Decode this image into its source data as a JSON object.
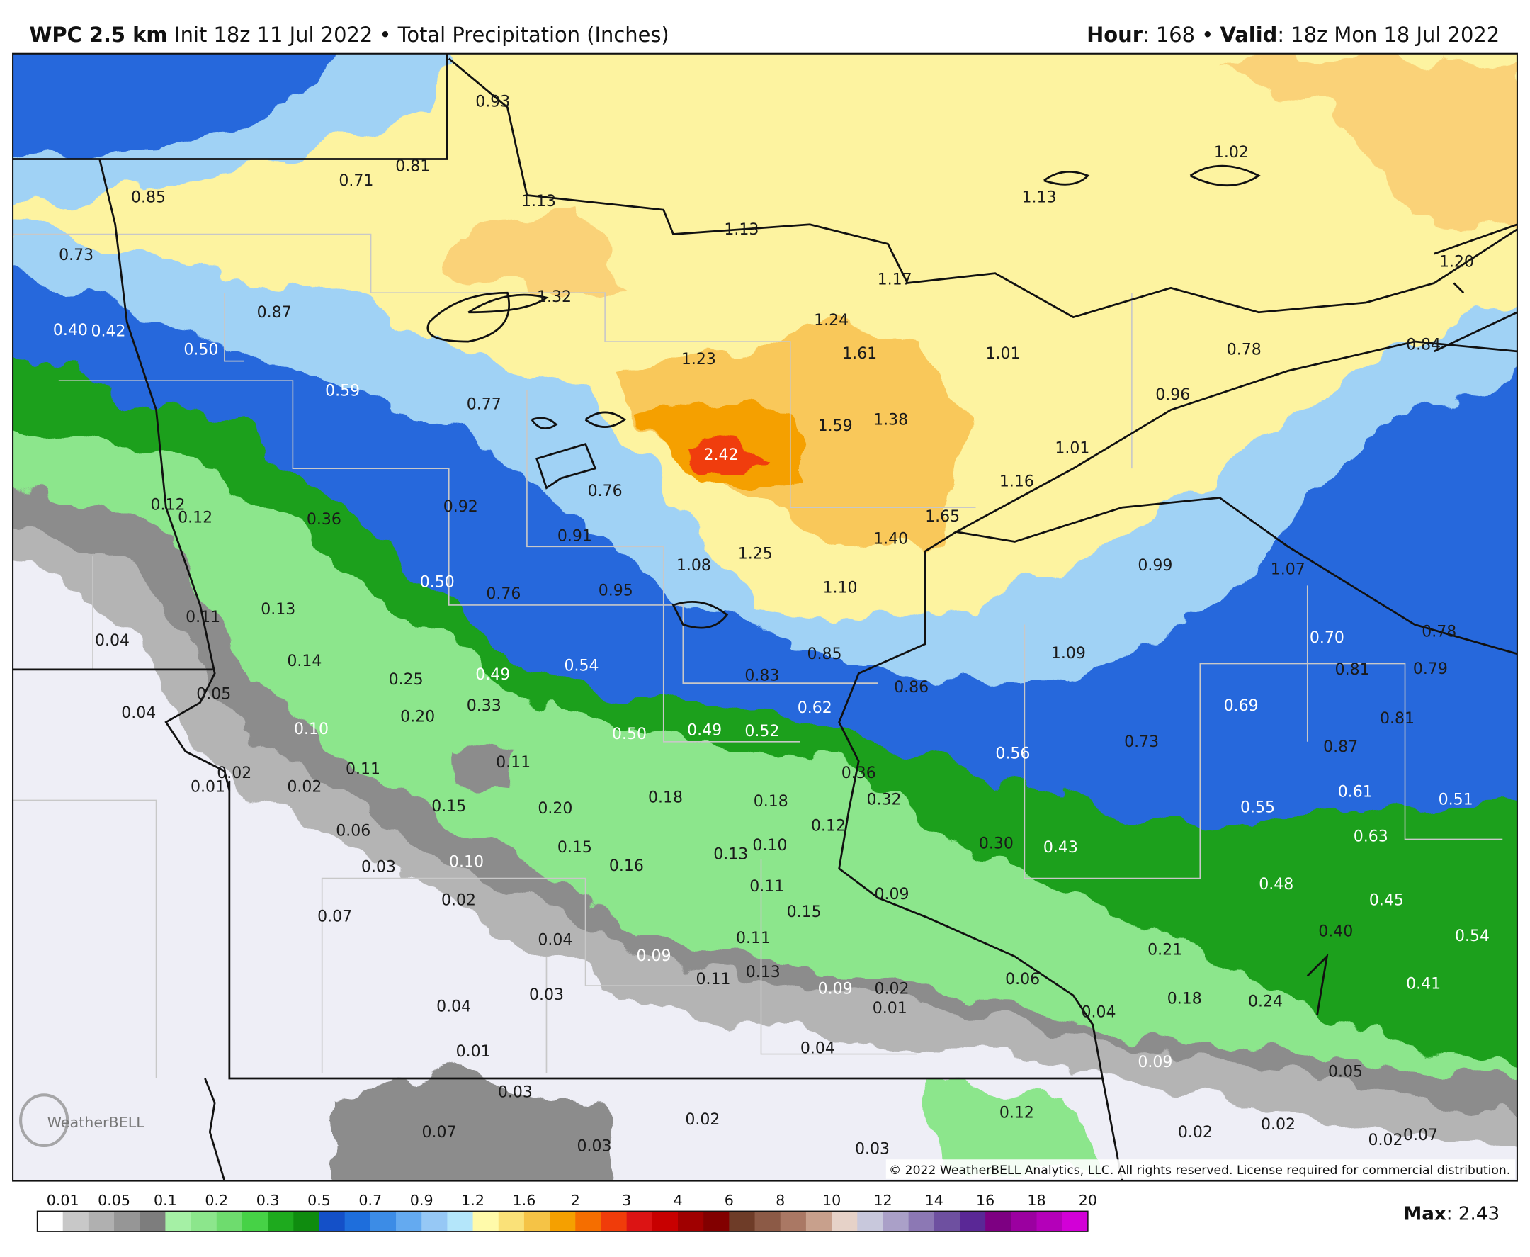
{
  "header": {
    "model": "WPC 2.5 km",
    "subtitle": "Init 18z 11 Jul 2022 • Total Precipitation (Inches)",
    "right_parts": [
      "Hour",
      ": 168 • ",
      "Valid",
      ": 18z Mon 18 Jul 2022"
    ]
  },
  "map": {
    "labels": [
      "0.93",
      "0.71",
      "0.81",
      "0.85",
      "1.13",
      "1.13",
      "1.02",
      "1.13",
      "0.73",
      "1.32",
      "1.17",
      "1.20",
      "0.87",
      "1.24",
      "0.40",
      "0.42",
      "0.50",
      "1.61",
      "1.23",
      "1.01",
      "0.78",
      "0.84",
      "0.59",
      "0.77",
      "1.59",
      "1.38",
      "0.96",
      "2.42",
      "1.01",
      "0.76",
      "1.16",
      "0.92",
      "0.12",
      "0.12",
      "0.36",
      "1.65",
      "0.91",
      "1.40",
      "1.25",
      "1.08",
      "0.99",
      "1.07",
      "0.50",
      "0.76",
      "0.95",
      "1.10",
      "0.11",
      "0.13",
      "0.04",
      "0.70",
      "0.78",
      "0.85",
      "1.09",
      "0.14",
      "0.81",
      "0.79",
      "0.25",
      "0.49",
      "0.54",
      "0.83",
      "0.86",
      "0.05",
      "0.04",
      "0.33",
      "0.20",
      "0.62",
      "0.69",
      "0.81",
      "0.10",
      "0.50",
      "0.49",
      "0.52",
      "0.56",
      "0.73",
      "0.87",
      "0.11",
      "0.02",
      "0.01",
      "0.11",
      "0.02",
      "0.36",
      "0.32",
      "0.61",
      "0.51",
      "0.15",
      "0.20",
      "0.18",
      "0.18",
      "0.55",
      "0.12",
      "0.06",
      "0.15",
      "0.13",
      "0.10",
      "0.30",
      "0.43",
      "0.63",
      "0.03",
      "0.10",
      "0.16",
      "0.11",
      "0.48",
      "0.09",
      "0.45",
      "0.02",
      "0.07",
      "0.15",
      "0.04",
      "0.11",
      "0.40",
      "0.54",
      "0.21",
      "0.09",
      "0.11",
      "0.13",
      "0.06",
      "0.09",
      "0.02",
      "0.01",
      "0.41",
      "0.04",
      "0.03",
      "0.18",
      "0.24",
      "0.04",
      "0.04",
      "0.01",
      "0.09",
      "0.05",
      "0.03",
      "0.12",
      "0.02",
      "0.02",
      "0.07",
      "0.02",
      "0.02",
      "0.07",
      "0.03",
      "0.03"
    ],
    "copyright": "© 2022 WeatherBELL Analytics, LLC. All rights reserved. License required for commercial distribution.",
    "logo": "WeatherBELL"
  },
  "colorbar": {
    "labels": [
      "0.01",
      "0.05",
      "0.1",
      "0.2",
      "0.3",
      "0.5",
      "0.7",
      "0.9",
      "1.2",
      "1.6",
      "2",
      "3",
      "4",
      "6",
      "8",
      "10",
      "12",
      "14",
      "16",
      "18",
      "20"
    ],
    "colors": [
      "#ffffff",
      "#c8c8c8",
      "#b0b0b0",
      "#969696",
      "#7d7d7d",
      "#a5f0a5",
      "#8ce68c",
      "#6edc6e",
      "#46d246",
      "#1eaa1e",
      "#0f8c0f",
      "#1450c8",
      "#1e6edc",
      "#3c8ce6",
      "#64aaf0",
      "#96c8f5",
      "#b4e6fa",
      "#fffaaa",
      "#fae178",
      "#f5c346",
      "#f5a000",
      "#f56e00",
      "#f03c0a",
      "#dc1414",
      "#c80000",
      "#a00000",
      "#820000",
      "#6e3c28",
      "#8c5a46",
      "#aa7864",
      "#c8a08c",
      "#e6d2c8",
      "#c8c8dc",
      "#aaa0c8",
      "#8c78b4",
      "#6e50a0",
      "#5a2896",
      "#7d0082",
      "#9b00a0",
      "#b400b9",
      "#d200d7"
    ]
  },
  "max": {
    "label": "Max",
    "value": ": 2.43"
  }
}
